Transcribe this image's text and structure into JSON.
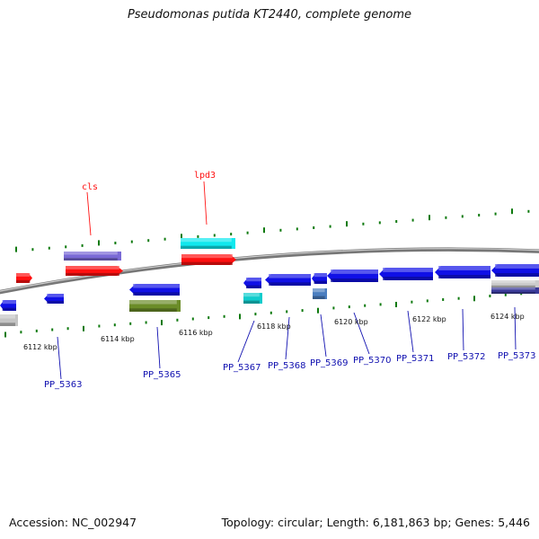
{
  "header": {
    "title": "Pseudomonas putida KT2440, complete genome"
  },
  "footer": {
    "accession": "Accession: NC_002947",
    "summary": "Topology: circular; Length: 6,181,863 bp; Genes: 5,446"
  },
  "colors": {
    "backbone": "#8a8a8a",
    "tick": "#0f7a0f",
    "label_blue": "#1010b0",
    "label_red": "#ff1010"
  },
  "scale_labels": [
    "6112 kbp",
    "6114 kbp",
    "6116 kbp",
    "6118 kbp",
    "6120 kbp",
    "6122 kbp",
    "6124 kbp"
  ],
  "gene_labels": {
    "top": [
      "cls",
      "lpd3"
    ],
    "bottom": [
      "PP_5363",
      "PP_5365",
      "PP_5367",
      "PP_5368",
      "PP_5369",
      "PP_5370",
      "PP_5371",
      "PP_5372",
      "PP_5373"
    ]
  }
}
